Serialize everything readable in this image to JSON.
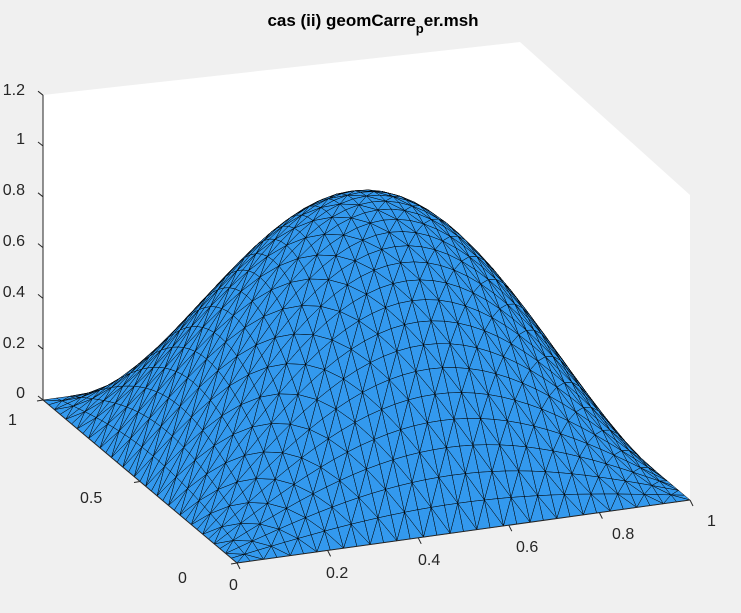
{
  "chart_data": {
    "type": "surface",
    "title_main": "cas (ii) geomCarre",
    "title_sub": "p",
    "title_tail": "er.msh",
    "function": "u(x,y) = sin(pi*x) * sin(pi*y)",
    "xlim": [
      0,
      1
    ],
    "ylim": [
      0,
      1
    ],
    "zlim": [
      0,
      1.2
    ],
    "xticks": [
      "0",
      "0.2",
      "0.4",
      "0.6",
      "0.8",
      "1"
    ],
    "yticks": [
      "0",
      "0.5",
      "1"
    ],
    "zticks": [
      "0",
      "0.2",
      "0.4",
      "0.6",
      "0.8",
      "1",
      "1.2"
    ],
    "peak": {
      "x": 0.5,
      "y": 0.5,
      "z": 1.0
    },
    "face_color": "#3399ee",
    "edge_color": "#000000",
    "mesh": "triangular"
  }
}
